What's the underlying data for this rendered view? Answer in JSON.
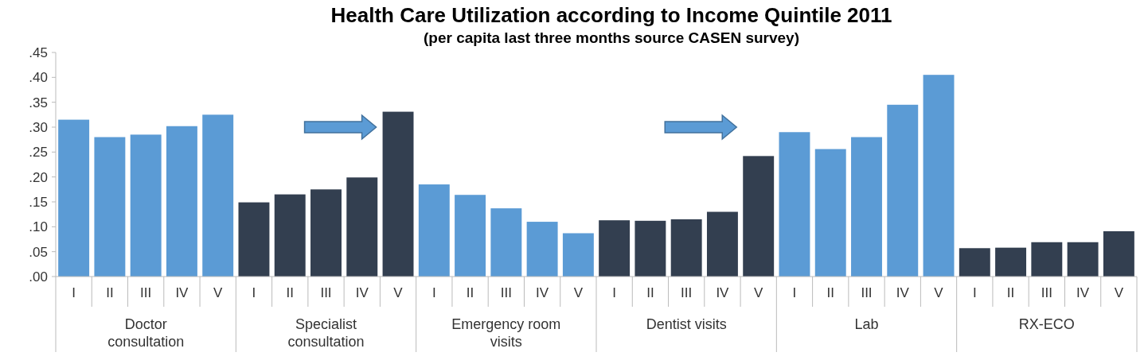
{
  "chart_data": {
    "type": "bar",
    "title": "Health Care Utilization according to Income Quintile 2011",
    "subtitle": "(per capita last three months source CASEN survey)",
    "categories": [
      "I",
      "II",
      "III",
      "IV",
      "V",
      "I",
      "II",
      "III",
      "IV",
      "V",
      "I",
      "II",
      "III",
      "IV",
      "V",
      "I",
      "II",
      "III",
      "IV",
      "V",
      "I",
      "II",
      "III",
      "IV",
      "V",
      "I",
      "II",
      "III",
      "IV",
      "V"
    ],
    "series": [
      {
        "name": "Doctor consultation",
        "color": "#5b9bd5",
        "values": [
          0.315,
          0.28,
          0.285,
          0.302,
          0.325,
          null,
          null,
          null,
          null,
          null,
          null,
          null,
          null,
          null,
          null,
          null,
          null,
          null,
          null,
          null,
          null,
          null,
          null,
          null,
          null,
          null,
          null,
          null,
          null,
          null
        ]
      },
      {
        "name": "Specialist consultation",
        "color": "#333f50",
        "values": [
          null,
          null,
          null,
          null,
          null,
          0.149,
          0.165,
          0.175,
          0.199,
          0.331,
          null,
          null,
          null,
          null,
          null,
          null,
          null,
          null,
          null,
          null,
          null,
          null,
          null,
          null,
          null,
          null,
          null,
          null,
          null,
          null
        ]
      },
      {
        "name": "Emergency room visits",
        "color": "#5b9bd5",
        "values": [
          null,
          null,
          null,
          null,
          null,
          null,
          null,
          null,
          null,
          null,
          0.185,
          0.164,
          0.137,
          0.11,
          0.087,
          null,
          null,
          null,
          null,
          null,
          null,
          null,
          null,
          null,
          null,
          null,
          null,
          null,
          null,
          null
        ]
      },
      {
        "name": "Dentist visits",
        "color": "#333f50",
        "values": [
          null,
          null,
          null,
          null,
          null,
          null,
          null,
          null,
          null,
          null,
          null,
          null,
          null,
          null,
          null,
          0.113,
          0.112,
          0.115,
          0.13,
          0.242,
          null,
          null,
          null,
          null,
          null,
          null,
          null,
          null,
          null,
          null
        ]
      },
      {
        "name": "Lab",
        "color": "#5b9bd5",
        "values": [
          null,
          null,
          null,
          null,
          null,
          null,
          null,
          null,
          null,
          null,
          null,
          null,
          null,
          null,
          null,
          null,
          null,
          null,
          null,
          null,
          0.29,
          0.256,
          0.28,
          0.345,
          0.405,
          null,
          null,
          null,
          null,
          null
        ]
      },
      {
        "name": "RX-ECO",
        "color": "#333f50",
        "values": [
          null,
          null,
          null,
          null,
          null,
          null,
          null,
          null,
          null,
          null,
          null,
          null,
          null,
          null,
          null,
          null,
          null,
          null,
          null,
          null,
          null,
          null,
          null,
          null,
          null,
          0.057,
          0.058,
          0.069,
          0.069,
          0.091
        ]
      }
    ],
    "ylim": [
      0,
      0.45
    ],
    "yticks": [
      {
        "value": 0,
        "label": ".00"
      },
      {
        "value": 0.05,
        "label": ".05"
      },
      {
        "value": 0.1,
        "label": ".10"
      },
      {
        "value": 0.15,
        "label": ".15"
      },
      {
        "value": 0.2,
        "label": ".20"
      },
      {
        "value": 0.25,
        "label": ".25"
      },
      {
        "value": 0.3,
        "label": ".30"
      },
      {
        "value": 0.35,
        "label": ".35"
      },
      {
        "value": 0.4,
        "label": ".40"
      },
      {
        "value": 0.45,
        "label": ".45"
      }
    ],
    "grid": false
  }
}
